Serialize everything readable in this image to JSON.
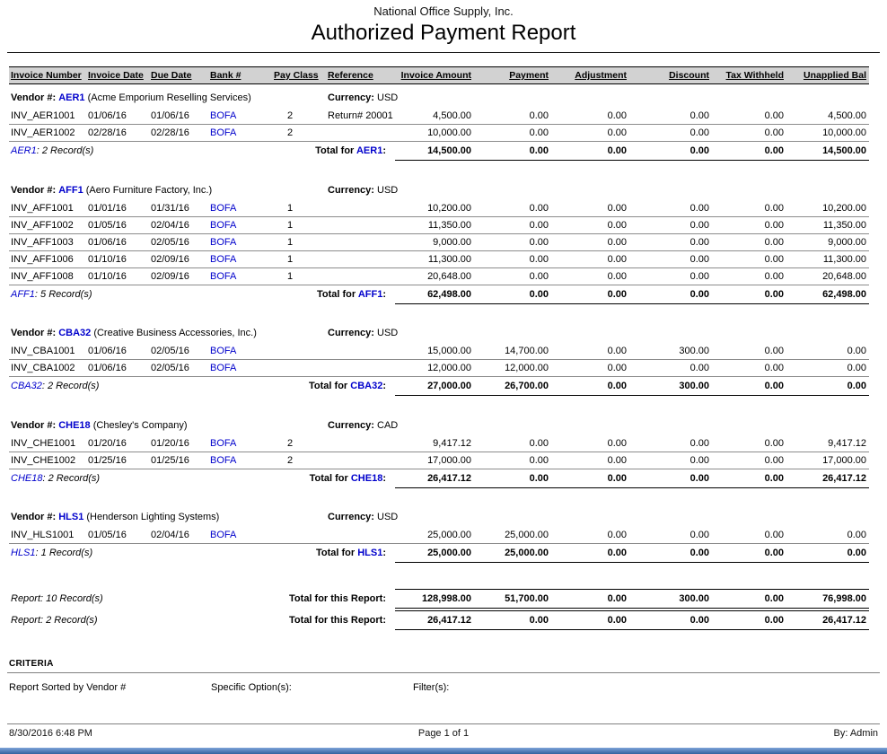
{
  "report": {
    "company": "National Office Supply, Inc.",
    "title": "Authorized Payment Report",
    "colors": {
      "link": "#0000cc",
      "header_bg": "#d2d2d2"
    },
    "columns": [
      "Invoice Number",
      "Invoice Date",
      "Due Date",
      "Bank #",
      "Pay Class",
      "Reference",
      "Invoice Amount",
      "Payment",
      "Adjustment",
      "Discount",
      "Tax Withheld",
      "Unapplied Bal"
    ],
    "labels": {
      "vendor": "Vendor #:",
      "currency": "Currency:",
      "total_for": "Total for",
      "report_total": "Total for this Report:"
    },
    "groups": [
      {
        "code": "AER1",
        "name": "(Acme Emporium Reselling Services)",
        "currency": "USD",
        "records": ": 2 Record(s)",
        "rows": [
          {
            "invoice": "INV_AER1001",
            "invoice_date": "01/06/16",
            "due_date": "01/06/16",
            "bank": "BOFA",
            "pay_class": "2",
            "reference": "Return# 20001",
            "amount": "4,500.00",
            "payment": "0.00",
            "adjustment": "0.00",
            "discount": "0.00",
            "tax": "0.00",
            "unapplied": "4,500.00"
          },
          {
            "invoice": "INV_AER1002",
            "invoice_date": "02/28/16",
            "due_date": "02/28/16",
            "bank": "BOFA",
            "pay_class": "2",
            "reference": "",
            "amount": "10,000.00",
            "payment": "0.00",
            "adjustment": "0.00",
            "discount": "0.00",
            "tax": "0.00",
            "unapplied": "10,000.00"
          }
        ],
        "totals": [
          "14,500.00",
          "0.00",
          "0.00",
          "0.00",
          "0.00",
          "14,500.00"
        ]
      },
      {
        "code": "AFF1",
        "name": "(Aero Furniture Factory, Inc.)",
        "currency": "USD",
        "records": ": 5 Record(s)",
        "rows": [
          {
            "invoice": "INV_AFF1001",
            "invoice_date": "01/01/16",
            "due_date": "01/31/16",
            "bank": "BOFA",
            "pay_class": "1",
            "reference": "",
            "amount": "10,200.00",
            "payment": "0.00",
            "adjustment": "0.00",
            "discount": "0.00",
            "tax": "0.00",
            "unapplied": "10,200.00"
          },
          {
            "invoice": "INV_AFF1002",
            "invoice_date": "01/05/16",
            "due_date": "02/04/16",
            "bank": "BOFA",
            "pay_class": "1",
            "reference": "",
            "amount": "11,350.00",
            "payment": "0.00",
            "adjustment": "0.00",
            "discount": "0.00",
            "tax": "0.00",
            "unapplied": "11,350.00"
          },
          {
            "invoice": "INV_AFF1003",
            "invoice_date": "01/06/16",
            "due_date": "02/05/16",
            "bank": "BOFA",
            "pay_class": "1",
            "reference": "",
            "amount": "9,000.00",
            "payment": "0.00",
            "adjustment": "0.00",
            "discount": "0.00",
            "tax": "0.00",
            "unapplied": "9,000.00"
          },
          {
            "invoice": "INV_AFF1006",
            "invoice_date": "01/10/16",
            "due_date": "02/09/16",
            "bank": "BOFA",
            "pay_class": "1",
            "reference": "",
            "amount": "11,300.00",
            "payment": "0.00",
            "adjustment": "0.00",
            "discount": "0.00",
            "tax": "0.00",
            "unapplied": "11,300.00"
          },
          {
            "invoice": "INV_AFF1008",
            "invoice_date": "01/10/16",
            "due_date": "02/09/16",
            "bank": "BOFA",
            "pay_class": "1",
            "reference": "",
            "amount": "20,648.00",
            "payment": "0.00",
            "adjustment": "0.00",
            "discount": "0.00",
            "tax": "0.00",
            "unapplied": "20,648.00"
          }
        ],
        "totals": [
          "62,498.00",
          "0.00",
          "0.00",
          "0.00",
          "0.00",
          "62,498.00"
        ]
      },
      {
        "code": "CBA32",
        "name": "(Creative Business Accessories, Inc.)",
        "currency": "USD",
        "records": ": 2 Record(s)",
        "rows": [
          {
            "invoice": "INV_CBA1001",
            "invoice_date": "01/06/16",
            "due_date": "02/05/16",
            "bank": "BOFA",
            "pay_class": "",
            "reference": "",
            "amount": "15,000.00",
            "payment": "14,700.00",
            "adjustment": "0.00",
            "discount": "300.00",
            "tax": "0.00",
            "unapplied": "0.00"
          },
          {
            "invoice": "INV_CBA1002",
            "invoice_date": "01/06/16",
            "due_date": "02/05/16",
            "bank": "BOFA",
            "pay_class": "",
            "reference": "",
            "amount": "12,000.00",
            "payment": "12,000.00",
            "adjustment": "0.00",
            "discount": "0.00",
            "tax": "0.00",
            "unapplied": "0.00"
          }
        ],
        "totals": [
          "27,000.00",
          "26,700.00",
          "0.00",
          "300.00",
          "0.00",
          "0.00"
        ]
      },
      {
        "code": "CHE18",
        "name": "(Chesley's Company)",
        "currency": "CAD",
        "records": ": 2 Record(s)",
        "rows": [
          {
            "invoice": "INV_CHE1001",
            "invoice_date": "01/20/16",
            "due_date": "01/20/16",
            "bank": "BOFA",
            "pay_class": "2",
            "reference": "",
            "amount": "9,417.12",
            "payment": "0.00",
            "adjustment": "0.00",
            "discount": "0.00",
            "tax": "0.00",
            "unapplied": "9,417.12"
          },
          {
            "invoice": "INV_CHE1002",
            "invoice_date": "01/25/16",
            "due_date": "01/25/16",
            "bank": "BOFA",
            "pay_class": "2",
            "reference": "",
            "amount": "17,000.00",
            "payment": "0.00",
            "adjustment": "0.00",
            "discount": "0.00",
            "tax": "0.00",
            "unapplied": "17,000.00"
          }
        ],
        "totals": [
          "26,417.12",
          "0.00",
          "0.00",
          "0.00",
          "0.00",
          "26,417.12"
        ]
      },
      {
        "code": "HLS1",
        "name": "(Henderson Lighting Systems)",
        "currency": "USD",
        "records": ": 1 Record(s)",
        "rows": [
          {
            "invoice": "INV_HLS1001",
            "invoice_date": "01/05/16",
            "due_date": "02/04/16",
            "bank": "BOFA",
            "pay_class": "",
            "reference": "",
            "amount": "25,000.00",
            "payment": "25,000.00",
            "adjustment": "0.00",
            "discount": "0.00",
            "tax": "0.00",
            "unapplied": "0.00"
          }
        ],
        "totals": [
          "25,000.00",
          "25,000.00",
          "0.00",
          "0.00",
          "0.00",
          "0.00"
        ]
      }
    ],
    "report_totals": [
      {
        "records": "Report: 10 Record(s)",
        "values": [
          "128,998.00",
          "51,700.00",
          "0.00",
          "300.00",
          "0.00",
          "76,998.00"
        ]
      },
      {
        "records": "Report: 2 Record(s)",
        "values": [
          "26,417.12",
          "0.00",
          "0.00",
          "0.00",
          "0.00",
          "26,417.12"
        ]
      }
    ],
    "criteria": {
      "heading": "CRITERIA",
      "sorted_by": "Report Sorted by Vendor #",
      "specific_options": "Specific Option(s):",
      "filters": "Filter(s):"
    },
    "footer": {
      "datetime": "8/30/2016 6:48 PM",
      "page": "Page 1 of 1",
      "by": "By: Admin"
    }
  }
}
